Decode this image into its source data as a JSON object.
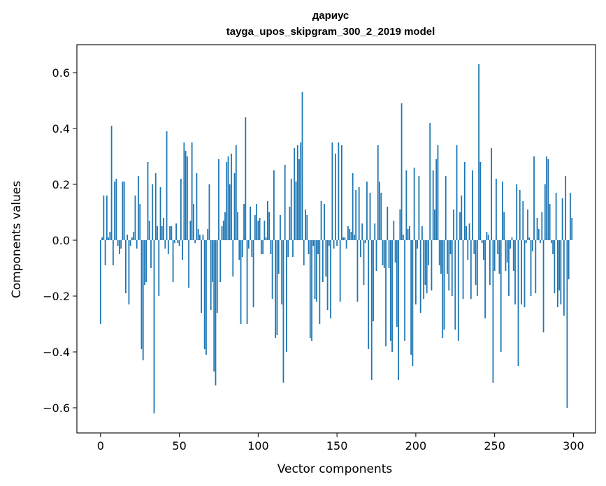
{
  "chart_data": {
    "type": "bar",
    "title": "дариус",
    "subtitle": "tayga_upos_skipgram_300_2_2019 model",
    "xlabel": "Vector components",
    "ylabel": "Components values",
    "xlim": [
      -15,
      314
    ],
    "ylim": [
      -0.69,
      0.7
    ],
    "xticks": [
      0,
      50,
      100,
      150,
      200,
      250,
      300
    ],
    "xtick_labels": [
      "0",
      "50",
      "100",
      "150",
      "200",
      "250",
      "300"
    ],
    "yticks": [
      0.6,
      0.4,
      0.2,
      0.0,
      -0.2,
      -0.4,
      -0.6
    ],
    "ytick_labels": [
      "0.6",
      "0.4",
      "0.2",
      "0.0",
      "−0.2",
      "−0.4",
      "−0.6"
    ],
    "grid": false,
    "bar_color": "#1f77b4",
    "values": [
      -0.3,
      0.01,
      0.16,
      -0.09,
      0.16,
      0.01,
      0.03,
      0.41,
      -0.09,
      0.21,
      0.22,
      -0.02,
      -0.05,
      -0.03,
      0.21,
      0.21,
      -0.19,
      0.02,
      -0.23,
      -0.02,
      0.01,
      0.03,
      0.16,
      -0.03,
      0.23,
      0.13,
      -0.39,
      -0.43,
      -0.16,
      -0.15,
      0.28,
      0.07,
      -0.1,
      0.2,
      -0.62,
      0.24,
      0.05,
      -0.2,
      0.19,
      0.05,
      0.08,
      -0.03,
      0.39,
      -0.05,
      0.05,
      0.05,
      -0.15,
      -0.01,
      0.06,
      -0.01,
      -0.02,
      0.22,
      -0.07,
      0.35,
      0.32,
      0.3,
      -0.17,
      0.07,
      0.35,
      0.13,
      -0.01,
      0.24,
      0.04,
      0.02,
      -0.26,
      0.02,
      -0.39,
      -0.41,
      0.04,
      0.2,
      -0.25,
      -0.15,
      -0.47,
      -0.52,
      -0.26,
      0.29,
      -0.15,
      0.05,
      0.07,
      0.1,
      0.28,
      0.3,
      0.2,
      0.31,
      -0.13,
      0.24,
      0.34,
      0.1,
      -0.07,
      -0.3,
      -0.06,
      0.13,
      0.44,
      -0.3,
      -0.03,
      0.12,
      -0.06,
      -0.24,
      0.09,
      0.13,
      0.07,
      0.08,
      -0.05,
      -0.05,
      0.07,
      0.01,
      0.14,
      0.1,
      -0.05,
      -0.21,
      0.25,
      -0.35,
      -0.34,
      -0.12,
      0.09,
      -0.23,
      -0.51,
      0.27,
      -0.4,
      -0.06,
      0.12,
      0.22,
      -0.06,
      0.33,
      0.21,
      0.34,
      0.29,
      0.35,
      0.53,
      -0.09,
      0.11,
      0.09,
      -0.05,
      -0.35,
      -0.36,
      -0.02,
      -0.21,
      -0.22,
      -0.05,
      -0.3,
      0.14,
      -0.15,
      0.13,
      -0.13,
      -0.25,
      -0.02,
      -0.28,
      0.35,
      -0.03,
      0.31,
      -0.02,
      0.35,
      -0.22,
      0.34,
      0.01,
      0.01,
      -0.03,
      0.05,
      0.04,
      0.03,
      0.24,
      0.02,
      0.18,
      -0.22,
      0.19,
      -0.06,
      0.06,
      -0.16,
      -0.01,
      0.21,
      -0.39,
      0.17,
      -0.5,
      -0.29,
      0.06,
      -0.11,
      0.34,
      0.21,
      0.17,
      -0.09,
      -0.1,
      -0.38,
      0.12,
      -0.1,
      -0.36,
      -0.4,
      0.07,
      -0.08,
      -0.31,
      -0.5,
      0.11,
      0.49,
      0.02,
      -0.36,
      0.25,
      0.04,
      0.05,
      -0.41,
      -0.45,
      0.26,
      -0.23,
      -0.03,
      0.23,
      -0.26,
      0.05,
      -0.21,
      -0.16,
      -0.19,
      -0.09,
      0.42,
      -0.18,
      0.25,
      0.11,
      0.29,
      0.34,
      -0.09,
      -0.12,
      -0.35,
      -0.32,
      0.23,
      -0.12,
      -0.18,
      -0.05,
      -0.2,
      0.11,
      -0.32,
      0.34,
      -0.36,
      0.1,
      0.16,
      -0.21,
      0.28,
      0.05,
      -0.07,
      0.06,
      -0.21,
      0.25,
      -0.05,
      -0.16,
      -0.2,
      0.63,
      0.28,
      -0.01,
      -0.07,
      -0.28,
      0.03,
      0.02,
      -0.16,
      0.33,
      -0.51,
      -0.11,
      0.22,
      -0.05,
      -0.12,
      -0.4,
      0.21,
      0.1,
      -0.11,
      -0.08,
      -0.2,
      -0.03,
      0.01,
      -0.11,
      -0.23,
      0.2,
      -0.45,
      0.18,
      -0.23,
      0.14,
      -0.24,
      -0.01,
      0.11,
      0.01,
      -0.2,
      -0.04,
      0.3,
      -0.19,
      0.08,
      0.04,
      -0.01,
      0.1,
      -0.33,
      0.2,
      0.3,
      0.29,
      0.13,
      -0.01,
      -0.05,
      -0.19,
      0.17,
      -0.24,
      -0.18,
      -0.23,
      0.15,
      -0.27,
      0.23,
      -0.6,
      -0.14,
      0.17,
      0.08
    ]
  }
}
